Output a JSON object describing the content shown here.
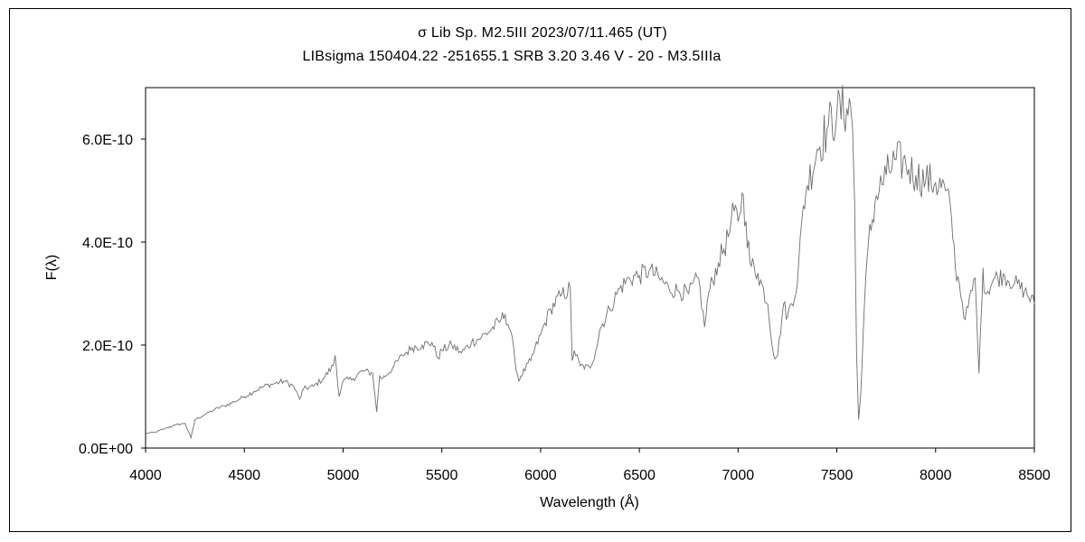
{
  "chart_data": {
    "type": "line",
    "title": "σ Lib    Sp. M2.5III     2023/07/11.465 (UT)",
    "subtitle": "LIBsigma 150404.22 -251655.1 SRB 3.20 3.46 V - 20 - M3.5IIIa",
    "xlabel": "Wavelength (Å)",
    "ylabel": "F(λ)",
    "xlim": [
      4000,
      8500
    ],
    "ylim": [
      0,
      7e-10
    ],
    "xticks": [
      4000,
      4500,
      5000,
      5500,
      6000,
      6500,
      7000,
      7500,
      8000,
      8500
    ],
    "xtick_labels": [
      "4000",
      "4500",
      "5000",
      "5500",
      "6000",
      "6500",
      "7000",
      "7500",
      "8000",
      "8500"
    ],
    "yticks": [
      0,
      2e-10,
      4e-10,
      6e-10
    ],
    "ytick_labels": [
      "0.0E+00",
      "2.0E-10",
      "4.0E-10",
      "6.0E-10"
    ],
    "grid": false,
    "legend": "none",
    "series": [
      {
        "color": "#6e6e6e",
        "x": [
          4000,
          4050,
          4100,
          4150,
          4200,
          4230,
          4250,
          4300,
          4350,
          4400,
          4450,
          4500,
          4550,
          4600,
          4650,
          4700,
          4750,
          4780,
          4800,
          4850,
          4900,
          4950,
          4960,
          4980,
          5000,
          5050,
          5100,
          5150,
          5170,
          5185,
          5200,
          5250,
          5300,
          5350,
          5400,
          5450,
          5480,
          5500,
          5550,
          5600,
          5650,
          5700,
          5750,
          5800,
          5820,
          5850,
          5870,
          5890,
          5900,
          5950,
          6000,
          6050,
          6100,
          6150,
          6160,
          6170,
          6200,
          6250,
          6280,
          6300,
          6350,
          6400,
          6450,
          6500,
          6550,
          6600,
          6650,
          6700,
          6750,
          6800,
          6830,
          6850,
          6900,
          6950,
          6980,
          7000,
          7020,
          7040,
          7060,
          7100,
          7150,
          7180,
          7200,
          7230,
          7250,
          7300,
          7330,
          7350,
          7400,
          7450,
          7500,
          7550,
          7570,
          7580,
          7590,
          7600,
          7610,
          7620,
          7640,
          7660,
          7700,
          7750,
          7800,
          7850,
          7900,
          7950,
          8000,
          8050,
          8080,
          8100,
          8120,
          8150,
          8200,
          8220,
          8230,
          8240,
          8250,
          8300,
          8350,
          8400,
          8450,
          8500
        ],
        "y": [
          2.8e-11,
          3.1e-11,
          3.8e-11,
          4.5e-11,
          4.8e-11,
          2e-11,
          5.5e-11,
          6.5e-11,
          7.5e-11,
          8.2e-11,
          9e-11,
          1e-10,
          1.1e-10,
          1.2e-10,
          1.25e-10,
          1.3e-10,
          1.2e-10,
          9.5e-11,
          1.15e-10,
          1.2e-10,
          1.35e-10,
          1.6e-10,
          1.8e-10,
          1e-10,
          1.3e-10,
          1.35e-10,
          1.5e-10,
          1.45e-10,
          7e-11,
          1.4e-10,
          1.35e-10,
          1.55e-10,
          1.8e-10,
          1.95e-10,
          2e-10,
          2.05e-10,
          1.75e-10,
          1.9e-10,
          2e-10,
          1.85e-10,
          2.05e-10,
          2.15e-10,
          2.3e-10,
          2.5e-10,
          2.6e-10,
          2.25e-10,
          1.7e-10,
          1.3e-10,
          1.4e-10,
          1.7e-10,
          2.2e-10,
          2.7e-10,
          2.95e-10,
          3.1e-10,
          1.7e-10,
          1.9e-10,
          1.6e-10,
          1.55e-10,
          1.9e-10,
          2.3e-10,
          2.7e-10,
          3.1e-10,
          3.3e-10,
          3.35e-10,
          3.45e-10,
          3.3e-10,
          3.1e-10,
          3.05e-10,
          3e-10,
          3.3e-10,
          2.35e-10,
          3e-10,
          3.6e-10,
          4.1e-10,
          4.6e-10,
          4.4e-10,
          4.95e-10,
          4.4e-10,
          3.6e-10,
          3.4e-10,
          2.8e-10,
          1.8e-10,
          1.8e-10,
          2.8e-10,
          2.55e-10,
          3.2e-10,
          4.7e-10,
          5.1e-10,
          5.8e-10,
          6.2e-10,
          6.5e-10,
          6.6e-10,
          6.65e-10,
          6.2e-10,
          4.8e-10,
          1.8e-10,
          5.5e-11,
          1e-10,
          2.8e-10,
          4e-10,
          4.9e-10,
          5.3e-10,
          5.6e-10,
          5.5e-10,
          5.3e-10,
          5.2e-10,
          5.15e-10,
          5e-10,
          4.5e-10,
          3.5e-10,
          3.2e-10,
          2.5e-10,
          3.3e-10,
          1.45e-10,
          2.5e-10,
          3.5e-10,
          3e-10,
          3.3e-10,
          3.35e-10,
          3.2e-10,
          3.05e-10,
          2.8e-10
        ]
      }
    ]
  }
}
